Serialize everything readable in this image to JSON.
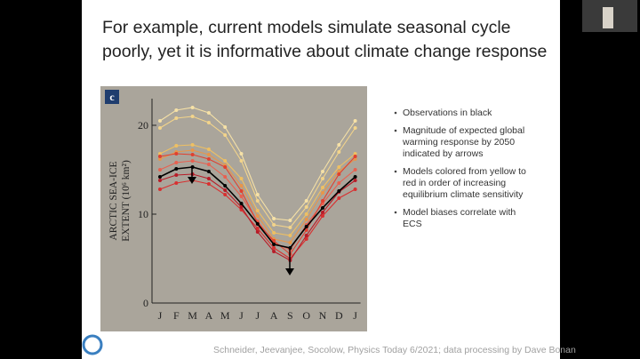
{
  "slide": {
    "title_lines": [
      "For example, current models simulate seasonal cycle",
      "poorly, yet it is informative about climate change response"
    ],
    "bullets": [
      [
        "Observations in black"
      ],
      [
        "Magnitude of expected global",
        "warming response by 2050",
        "indicated by arrows"
      ],
      [
        "Models colored from yellow to",
        "red in order of increasing",
        "equilibrium climate sensitivity"
      ],
      [
        "Model biases correlate with",
        "ECS"
      ]
    ],
    "citation": "Schneider, Jeevanjee, Socolow, Physics Today 6/2021; data processing by Dave Bonan"
  },
  "chart_data": {
    "type": "line",
    "panel_label": "c",
    "y_label_lines": [
      "ARCTIC SEA-ICE",
      "EXTENT (10⁶ km²)"
    ],
    "categories": [
      "J",
      "F",
      "M",
      "A",
      "M",
      "J",
      "J",
      "A",
      "S",
      "O",
      "N",
      "D",
      "J"
    ],
    "ylim": [
      0,
      23
    ],
    "yticks": [
      0,
      10,
      20
    ],
    "series": [
      {
        "color": "#f6e1a6",
        "values": [
          20.5,
          21.7,
          22,
          21.4,
          19.8,
          16.8,
          12.2,
          9.5,
          9.3,
          11.5,
          14.8,
          17.8,
          20.5
        ]
      },
      {
        "color": "#f3d48a",
        "values": [
          19.7,
          20.8,
          21,
          20.3,
          18.9,
          16,
          11.5,
          8.8,
          8.5,
          10.8,
          14,
          17,
          19.7
        ]
      },
      {
        "color": "#efc062",
        "values": [
          16.8,
          17.7,
          17.8,
          17.3,
          16,
          14,
          10.4,
          7.9,
          7.6,
          10,
          13,
          15.3,
          16.8
        ]
      },
      {
        "color": "#e8954a",
        "values": [
          16.2,
          17,
          17.2,
          16.7,
          15.5,
          13.2,
          9.8,
          7.2,
          6.8,
          9.4,
          12.4,
          14.8,
          16.2
        ]
      },
      {
        "color": "#e86050",
        "values": [
          15,
          15.8,
          16,
          15.6,
          14.2,
          12,
          9.2,
          6.8,
          6,
          8.8,
          11.2,
          13.5,
          15
        ]
      },
      {
        "color": "#e04030",
        "values": [
          16.5,
          16.8,
          16.7,
          16.2,
          15.3,
          12.6,
          9,
          7,
          5.5,
          8.2,
          11.5,
          14.5,
          16.5
        ]
      },
      {
        "color": "#d83030",
        "values": [
          12.8,
          13.5,
          13.8,
          13.4,
          12.2,
          10.5,
          8.4,
          6.2,
          5,
          7.2,
          9.8,
          11.8,
          12.8
        ]
      },
      {
        "color": "#b81c28",
        "values": [
          13.8,
          14.4,
          14.5,
          14,
          12.7,
          10.8,
          8,
          5.8,
          4.8,
          7.6,
          10.2,
          12.5,
          13.8
        ]
      },
      {
        "color": "#000000",
        "values": [
          14.2,
          15.1,
          15.3,
          14.8,
          13.2,
          11.2,
          8.9,
          6.6,
          6.2,
          8.6,
          10.7,
          12.6,
          14.2
        ]
      }
    ]
  }
}
